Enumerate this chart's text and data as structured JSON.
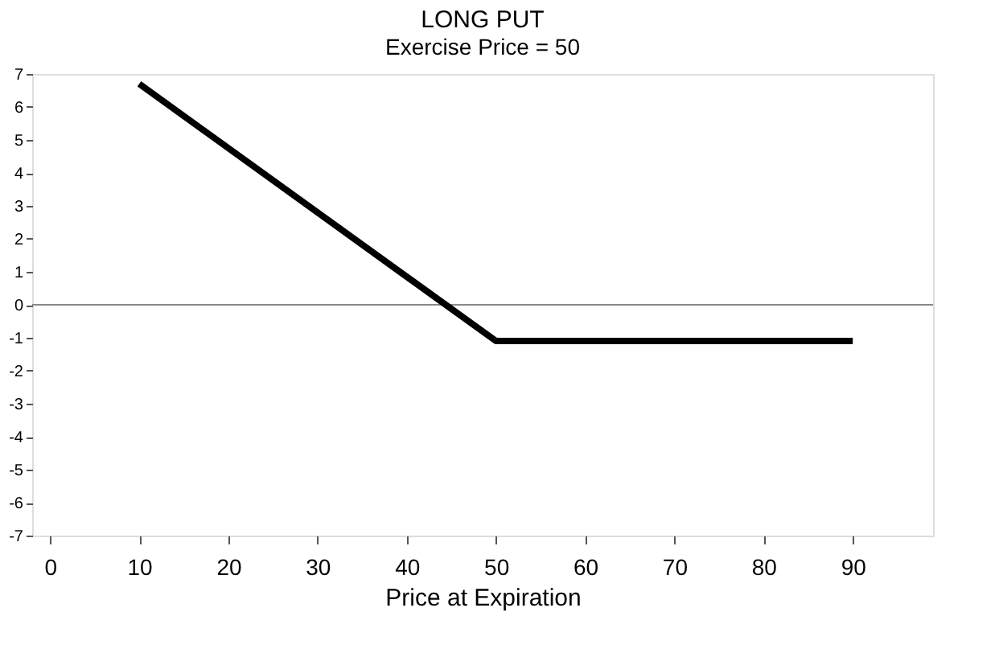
{
  "chart_data": {
    "type": "line",
    "title": "LONG PUT",
    "subtitle": "Exercise Price = 50",
    "xlabel": "Price at Expiration",
    "x": [
      10,
      50,
      90
    ],
    "series": [
      {
        "color": "#000000",
        "values": [
          6.7,
          -1.1,
          -1.1
        ]
      }
    ],
    "xlim": [
      -2,
      99
    ],
    "xticks": [
      0,
      10,
      20,
      30,
      40,
      50,
      60,
      70,
      80,
      90
    ],
    "ylim": [
      -7,
      7
    ],
    "yticks": [
      -7,
      -6,
      -5,
      -4,
      -3,
      -2,
      -1,
      0,
      1,
      2,
      3,
      4,
      5,
      6,
      7
    ],
    "ref_lines": [
      {
        "axis": "y",
        "value": 0,
        "color": "#888888"
      }
    ],
    "grid": false,
    "marker": "none",
    "line_style": "solid"
  }
}
